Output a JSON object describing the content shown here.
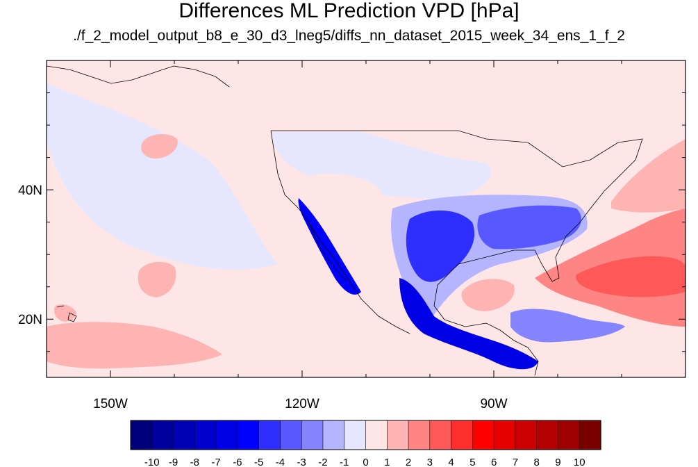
{
  "chart_data": {
    "type": "heatmap",
    "title": "Differences ML Prediction VPD [hPa]",
    "subtitle": "./f_2_model_output_b8_e_30_d3_lneg5/diffs_nn_dataset_2015_week_34_ens_1_f_2",
    "x_axis": {
      "label": "",
      "range": [
        -160,
        -60
      ],
      "unit": "degrees longitude",
      "tick_labels": [
        {
          "value": -150,
          "label": "150W"
        },
        {
          "value": -120,
          "label": "120W"
        },
        {
          "value": -90,
          "label": "90W"
        }
      ]
    },
    "y_axis": {
      "label": "",
      "range": [
        11,
        60
      ],
      "unit": "degrees latitude",
      "tick_labels": [
        {
          "value": 20,
          "label": "20N"
        },
        {
          "value": 40,
          "label": "40N"
        }
      ]
    },
    "colorbar": {
      "placement": "bottom",
      "labels": [
        "-10",
        "-9",
        "-8",
        "-7",
        "-6",
        "-5",
        "-4",
        "-3",
        "-2",
        "-1",
        "0",
        "1",
        "2",
        "3",
        "4",
        "5",
        "6",
        "7",
        "8",
        "9",
        "10"
      ],
      "colors": [
        "#00007a",
        "#00009c",
        "#0000b4",
        "#0000cc",
        "#0000e6",
        "#0000ff",
        "#2e2eff",
        "#5858ff",
        "#8484ff",
        "#b4b4ff",
        "#e6e6ff",
        "#ffe6e6",
        "#ffb4b4",
        "#ff8484",
        "#ff5858",
        "#ff2e2e",
        "#ff0000",
        "#e60000",
        "#cc0000",
        "#b40000",
        "#9c0000",
        "#7a0000"
      ]
    },
    "field_regions": [
      {
        "region": "background ocean",
        "value": 0.4
      },
      {
        "region": "eastern Pacific west of California",
        "value": -0.5
      },
      {
        "region": "Pacific near 45N 145W",
        "value": 1.5
      },
      {
        "region": "Pacific near 28N 140W",
        "value": 1.5
      },
      {
        "region": "tropical Pacific south of Hawaii",
        "value": 1.5
      },
      {
        "region": "northwestern United States",
        "value": -0.5
      },
      {
        "region": "Nevada and Utah",
        "value": 0.5
      },
      {
        "region": "Texas",
        "value": -4.5
      },
      {
        "region": "southeastern United States",
        "value": -3.5
      },
      {
        "region": "Baja California and western Mexico",
        "value": -5.5
      },
      {
        "region": "southern Mexico and Central America",
        "value": -6.5
      },
      {
        "region": "Gulf of Mexico",
        "value": 1.5
      },
      {
        "region": "western Atlantic near 28N 70W",
        "value": 3.5
      },
      {
        "region": "Caribbean near 20N 80W",
        "value": -2.5
      }
    ]
  }
}
